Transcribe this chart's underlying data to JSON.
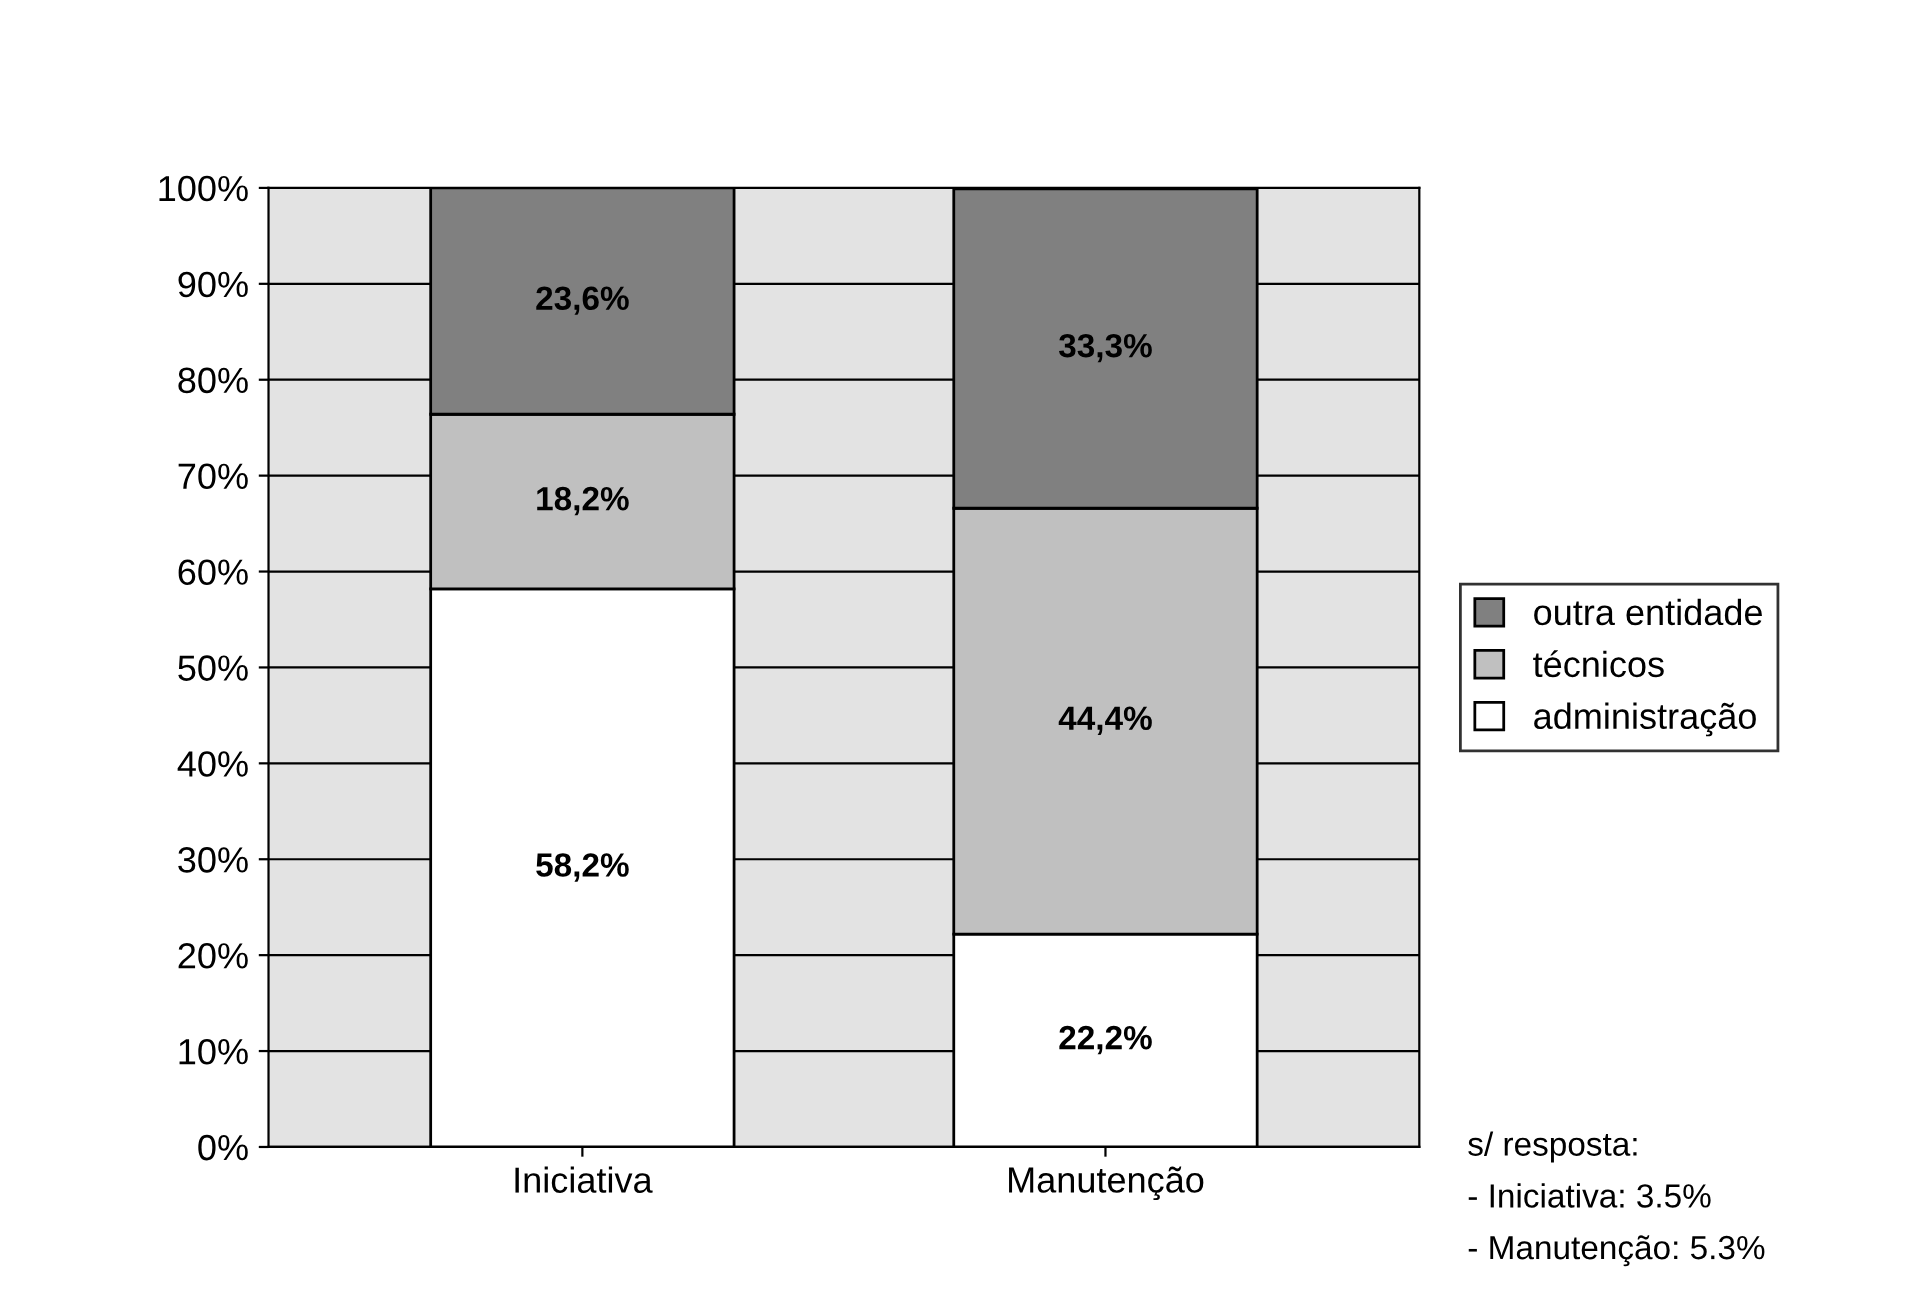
{
  "chart_data": {
    "type": "bar",
    "stacked": true,
    "categories": [
      "Iniciativa",
      "Manutenção"
    ],
    "series": [
      {
        "name": "administração",
        "color": "#ffffff",
        "values": [
          58.2,
          22.2
        ],
        "value_labels": [
          "58,2%",
          "22,2%"
        ]
      },
      {
        "name": "técnicos",
        "color": "#c0c0c0",
        "values": [
          18.2,
          44.4
        ],
        "value_labels": [
          "18,2%",
          "44,4%"
        ]
      },
      {
        "name": "outra entidade",
        "color": "#808080",
        "values": [
          23.6,
          33.3
        ],
        "value_labels": [
          "23,6%",
          "33,3%"
        ]
      }
    ],
    "ylim": [
      0,
      100
    ],
    "yticks": [
      {
        "value": 0,
        "label": "0%"
      },
      {
        "value": 10,
        "label": "10%"
      },
      {
        "value": 20,
        "label": "20%"
      },
      {
        "value": 30,
        "label": "30%"
      },
      {
        "value": 40,
        "label": "40%"
      },
      {
        "value": 50,
        "label": "50%"
      },
      {
        "value": 60,
        "label": "60%"
      },
      {
        "value": 70,
        "label": "70%"
      },
      {
        "value": 80,
        "label": "80%"
      },
      {
        "value": 90,
        "label": "90%"
      },
      {
        "value": 100,
        "label": "100%"
      }
    ],
    "grid": "y",
    "legend": "right",
    "annotations": [
      "s/ resposta:",
      "- Iniciativa: 3.5%",
      "- Manutenção: 5.3%"
    ]
  }
}
